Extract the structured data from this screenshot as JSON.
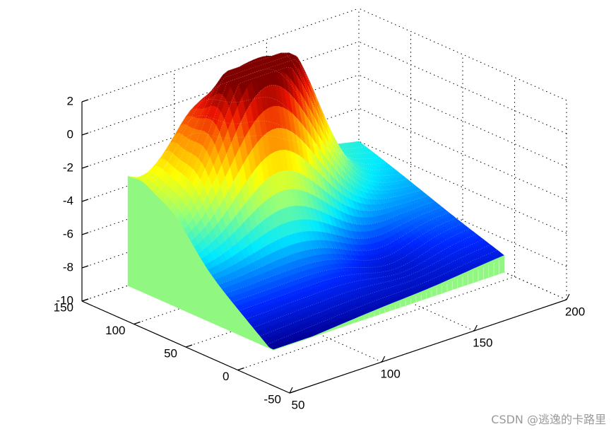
{
  "chart_data": {
    "type": "surface",
    "title": "",
    "xlabel": "",
    "ylabel": "",
    "zlabel": "",
    "xlim": [
      50,
      200
    ],
    "ylim": [
      -50,
      150
    ],
    "zlim": [
      -10,
      2
    ],
    "x_ticks": [
      50,
      100,
      150,
      200
    ],
    "y_ticks": [
      -50,
      0,
      50,
      100,
      150
    ],
    "z_ticks": [
      -10,
      -8,
      -6,
      -4,
      -2,
      0,
      2
    ],
    "x_tick_labels": [
      "50",
      "100",
      "150",
      "200"
    ],
    "y_tick_labels": [
      "-50",
      "0",
      "50",
      "100",
      "150"
    ],
    "z_tick_labels": [
      "-10",
      "-8",
      "-6",
      "-4",
      "-2",
      "0",
      "2"
    ],
    "grid": true,
    "colormap": "jet",
    "side_color": "#90f880",
    "surface": {
      "x_range": [
        75,
        200
      ],
      "y_range": [
        10,
        150
      ],
      "base_z": -10,
      "peak": {
        "x": 118,
        "y": 110,
        "z": 1.8
      },
      "approx_z_at_corners": [
        {
          "x": 75,
          "y": 10,
          "z": -10
        },
        {
          "x": 200,
          "y": 10,
          "z": -10
        },
        {
          "x": 75,
          "y": 150,
          "z": -2.3
        },
        {
          "x": 200,
          "y": 150,
          "z": -8.8
        }
      ]
    }
  },
  "watermark": "CSDN @逃逸的卡路里"
}
